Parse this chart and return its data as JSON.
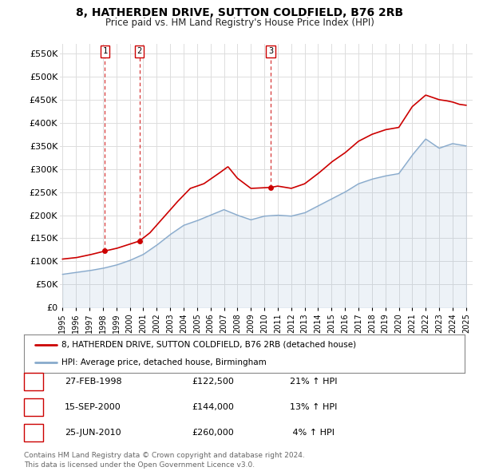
{
  "title": "8, HATHERDEN DRIVE, SUTTON COLDFIELD, B76 2RB",
  "subtitle": "Price paid vs. HM Land Registry's House Price Index (HPI)",
  "ylabel_ticks": [
    "£0",
    "£50K",
    "£100K",
    "£150K",
    "£200K",
    "£250K",
    "£300K",
    "£350K",
    "£400K",
    "£450K",
    "£500K",
    "£550K"
  ],
  "ytick_vals": [
    0,
    50000,
    100000,
    150000,
    200000,
    250000,
    300000,
    350000,
    400000,
    450000,
    500000,
    550000
  ],
  "ylim": [
    0,
    570000
  ],
  "xlim_start": 1994.8,
  "xlim_end": 2025.5,
  "transactions": [
    {
      "num": 1,
      "date": "27-FEB-1998",
      "price": 122500,
      "year": 1998.15,
      "hpi_pct": "21%",
      "price_str": "£122,500"
    },
    {
      "num": 2,
      "date": "15-SEP-2000",
      "price": 144000,
      "year": 2000.71,
      "hpi_pct": "13%",
      "price_str": "£144,000"
    },
    {
      "num": 3,
      "date": "25-JUN-2010",
      "price": 260000,
      "year": 2010.48,
      "hpi_pct": "4%",
      "price_str": "£260,000"
    }
  ],
  "line_color_red": "#cc0000",
  "line_color_blue": "#88aacc",
  "legend_label_red": "8, HATHERDEN DRIVE, SUTTON COLDFIELD, B76 2RB (detached house)",
  "legend_label_blue": "HPI: Average price, detached house, Birmingham",
  "footer_line1": "Contains HM Land Registry data © Crown copyright and database right 2024.",
  "footer_line2": "This data is licensed under the Open Government Licence v3.0.",
  "table_rows": [
    [
      "1",
      "27-FEB-1998",
      "£122,500",
      "21% ↑ HPI"
    ],
    [
      "2",
      "15-SEP-2000",
      "£144,000",
      "13% ↑ HPI"
    ],
    [
      "3",
      "25-JUN-2010",
      "£260,000",
      " 4% ↑ HPI"
    ]
  ],
  "background_color": "#ffffff",
  "grid_color": "#dddddd",
  "hpi_years": [
    1995,
    1996,
    1997,
    1998,
    1999,
    2000,
    2001,
    2002,
    2003,
    2004,
    2005,
    2006,
    2007,
    2008,
    2009,
    2010,
    2011,
    2012,
    2013,
    2014,
    2015,
    2016,
    2017,
    2018,
    2019,
    2020,
    2021,
    2022,
    2023,
    2024,
    2025
  ],
  "hpi_vals": [
    72000,
    76000,
    80000,
    85000,
    92000,
    102000,
    115000,
    135000,
    158000,
    178000,
    188000,
    200000,
    212000,
    200000,
    190000,
    198000,
    200000,
    198000,
    205000,
    220000,
    235000,
    250000,
    268000,
    278000,
    285000,
    290000,
    330000,
    365000,
    345000,
    355000,
    350000
  ],
  "red_years": [
    1995,
    1996,
    1997,
    1998.15,
    1999,
    2000.71,
    2001.5,
    2002.5,
    2003.5,
    2004.5,
    2005.5,
    2006.5,
    2007.3,
    2008,
    2009,
    2010.48,
    2011,
    2012,
    2013,
    2014,
    2015,
    2016,
    2017,
    2018,
    2019,
    2020,
    2021,
    2022.0,
    2022.5,
    2023,
    2023.5,
    2024,
    2024.5,
    2025
  ],
  "red_vals": [
    105000,
    108000,
    114000,
    122500,
    128000,
    144000,
    162000,
    195000,
    228000,
    258000,
    268000,
    288000,
    305000,
    280000,
    258000,
    260000,
    263000,
    258000,
    268000,
    290000,
    315000,
    335000,
    360000,
    375000,
    385000,
    390000,
    435000,
    460000,
    455000,
    450000,
    448000,
    445000,
    440000,
    438000
  ]
}
